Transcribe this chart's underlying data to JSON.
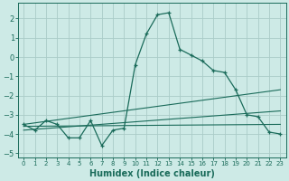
{
  "xlabel": "Humidex (Indice chaleur)",
  "xlim": [
    -0.5,
    23.5
  ],
  "ylim": [
    -5.2,
    2.8
  ],
  "yticks": [
    -5,
    -4,
    -3,
    -2,
    -1,
    0,
    1,
    2
  ],
  "xtick_labels": [
    "0",
    "1",
    "2",
    "3",
    "4",
    "5",
    "6",
    "7",
    "8",
    "9",
    "10",
    "11",
    "12",
    "13",
    "14",
    "15",
    "16",
    "17",
    "18",
    "19",
    "20",
    "21",
    "22",
    "23"
  ],
  "bg_color": "#cdeae6",
  "grid_color": "#aaccc8",
  "line_color": "#1a6b5a",
  "line_main_x": [
    0,
    1,
    2,
    3,
    4,
    5,
    6,
    7,
    8,
    9,
    10,
    11,
    12,
    13,
    14,
    15,
    16,
    17,
    18,
    19,
    20,
    21,
    22,
    23
  ],
  "line_main_y": [
    -3.5,
    -3.8,
    -3.3,
    -3.5,
    -4.2,
    -4.2,
    -3.3,
    -4.6,
    -3.8,
    -3.7,
    -0.4,
    1.2,
    2.2,
    2.3,
    0.4,
    0.1,
    -0.2,
    -0.7,
    -0.8,
    -1.7,
    -3.0,
    -3.1,
    -3.9,
    -4.0
  ],
  "trend1_x": [
    0,
    23
  ],
  "trend1_y": [
    -3.6,
    -3.5
  ],
  "trend2_x": [
    0,
    23
  ],
  "trend2_y": [
    -3.8,
    -2.8
  ],
  "trend3_x": [
    0,
    23
  ],
  "trend3_y": [
    -3.5,
    -1.7
  ]
}
